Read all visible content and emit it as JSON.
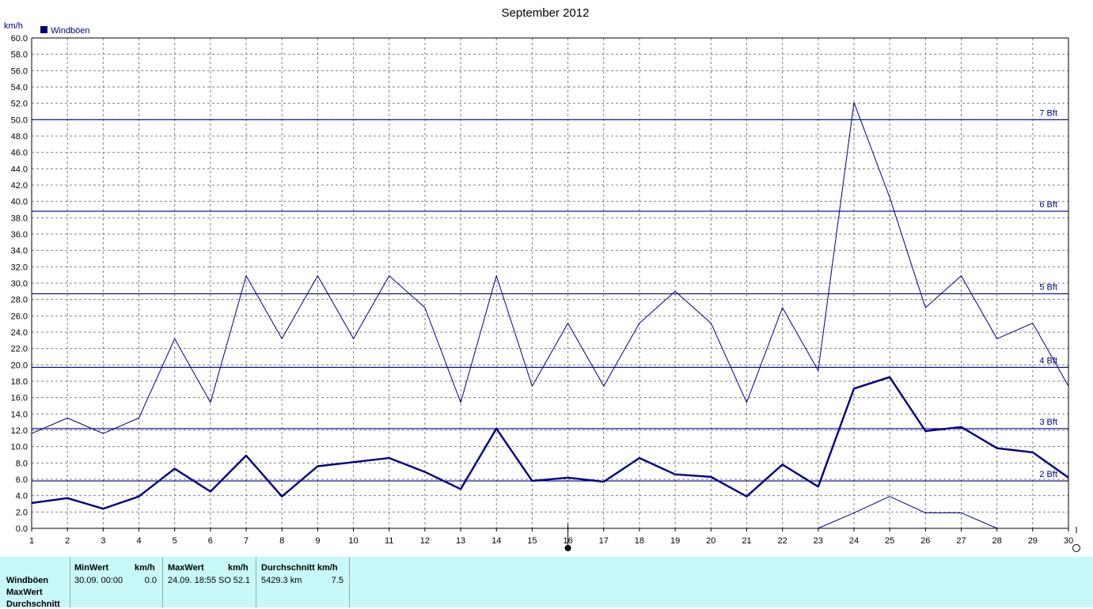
{
  "chart_data": {
    "type": "line",
    "title": "September 2012",
    "ylabel": "km/h",
    "ylim": [
      0,
      60
    ],
    "y_tick_step": 2,
    "y_tick_decimals": 1,
    "xlim": [
      1,
      30
    ],
    "x": [
      1,
      2,
      3,
      4,
      5,
      6,
      7,
      8,
      9,
      10,
      11,
      12,
      13,
      14,
      15,
      16,
      17,
      18,
      19,
      20,
      21,
      22,
      23,
      24,
      25,
      26,
      27,
      28,
      29,
      30
    ],
    "grid": true,
    "legend": [
      "Windböen"
    ],
    "series": [
      {
        "name": "Windböen",
        "role": "max",
        "values": [
          11.6,
          13.5,
          11.6,
          13.5,
          23.2,
          15.4,
          30.9,
          23.2,
          30.9,
          23.2,
          30.9,
          27.0,
          15.4,
          30.9,
          17.4,
          25.1,
          17.4,
          25.1,
          29.0,
          25.1,
          15.4,
          27.0,
          19.3,
          52.1,
          40.5,
          27.0,
          30.9,
          23.2,
          25.1,
          17.4
        ]
      },
      {
        "role": "average",
        "values": [
          3.1,
          3.7,
          2.4,
          3.9,
          7.3,
          4.5,
          8.9,
          3.9,
          7.6,
          8.1,
          8.6,
          6.9,
          4.8,
          12.2,
          5.8,
          6.2,
          5.7,
          8.6,
          6.6,
          6.3,
          3.9,
          7.8,
          5.1,
          17.1,
          18.5,
          11.9,
          12.4,
          9.8,
          9.3,
          6.2
        ]
      },
      {
        "role": "min",
        "x": [
          23,
          24,
          25,
          26,
          27,
          28
        ],
        "values": [
          0.0,
          1.9,
          3.9,
          1.9,
          1.9,
          0.0
        ]
      }
    ],
    "reference_lines": [
      {
        "label": "2 Bft",
        "value": 5.8
      },
      {
        "label": "3 Bft",
        "value": 12.2
      },
      {
        "label": "4 Bft",
        "value": 19.7
      },
      {
        "label": "5 Bft",
        "value": 28.7
      },
      {
        "label": "6 Bft",
        "value": 38.8
      },
      {
        "label": "7 Bft",
        "value": 50.0
      }
    ],
    "colors": {
      "series": "#000080",
      "grid": "#808080",
      "axis": "#000000"
    }
  },
  "stats": {
    "row_labels": [
      "Windböen",
      "MaxWert",
      "Durchschnitt"
    ],
    "min": {
      "header": "MinWert",
      "unit": "km/h",
      "date": "30.09.  00:00",
      "value": "0.0"
    },
    "max": {
      "header": "MaxWert",
      "unit": "km/h",
      "date": "24.09.  18:55",
      "direction": "SO",
      "value": "52.1"
    },
    "avg": {
      "header": "Durchschnitt km/h",
      "distance": "5429.3 km",
      "value": "7.5"
    }
  }
}
